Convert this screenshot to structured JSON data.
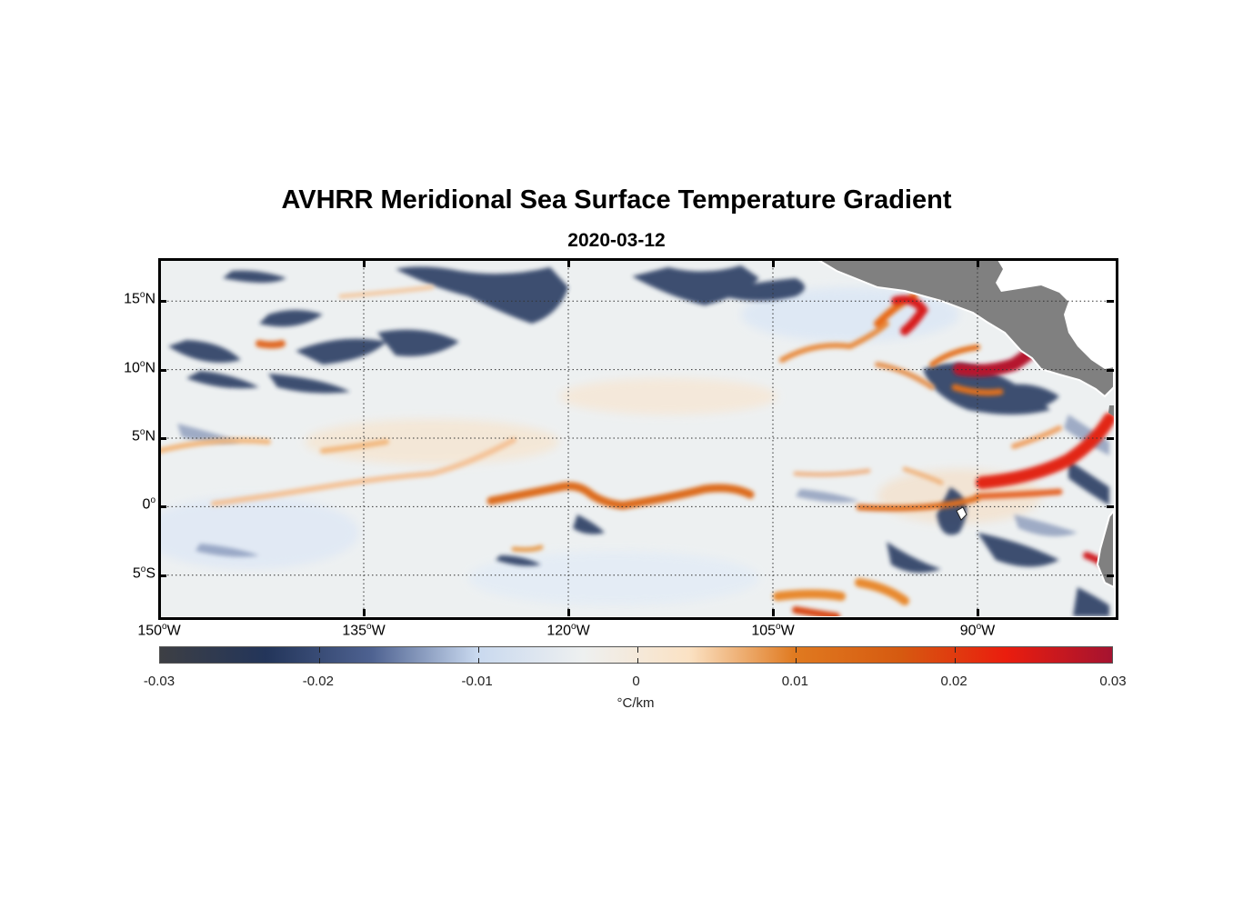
{
  "title": "AVHRR Meridional Sea Surface Temperature Gradient",
  "subtitle": "2020-03-12",
  "map": {
    "lon_range": [
      -150,
      -80
    ],
    "lat_range": [
      -8,
      18
    ],
    "grid": true,
    "land_color": "#808080",
    "lat_ticks": [
      {
        "value": 15,
        "num": "15",
        "sup": "o",
        "hemi": "N"
      },
      {
        "value": 10,
        "num": "10",
        "sup": "o",
        "hemi": "N"
      },
      {
        "value": 5,
        "num": "5",
        "sup": "o",
        "hemi": "N"
      },
      {
        "value": 0,
        "num": "0",
        "sup": "o",
        "hemi": ""
      },
      {
        "value": -5,
        "num": "5",
        "sup": "o",
        "hemi": "S"
      }
    ],
    "lon_ticks": [
      {
        "value": -150,
        "num": "150",
        "sup": "o",
        "hemi": "W"
      },
      {
        "value": -135,
        "num": "135",
        "sup": "o",
        "hemi": "W"
      },
      {
        "value": -120,
        "num": "120",
        "sup": "o",
        "hemi": "W"
      },
      {
        "value": -105,
        "num": "105",
        "sup": "o",
        "hemi": "W"
      },
      {
        "value": -90,
        "num": "90",
        "sup": "o",
        "hemi": "W"
      }
    ]
  },
  "colorbar": {
    "ticks": [
      "-0.03",
      "-0.02",
      "-0.01",
      "0",
      "0.01",
      "0.02",
      "0.03"
    ],
    "range": [
      -0.03,
      0.03
    ],
    "units": "°C/km",
    "colors": [
      "#3d3f44",
      "#23355a",
      "#4e6291",
      "#c9d9ef",
      "#eef0f0",
      "#fbe2c4",
      "#e07a20",
      "#d65a10",
      "#ea1d0e",
      "#a51330"
    ]
  }
}
